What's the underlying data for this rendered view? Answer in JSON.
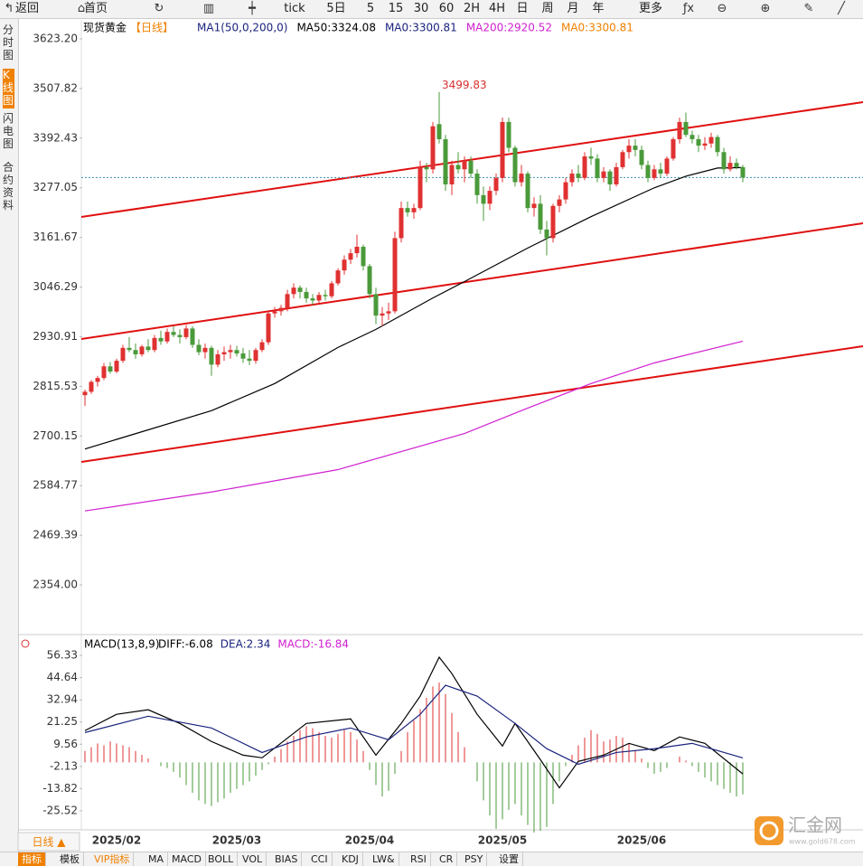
{
  "toolbar": [
    "返回",
    "首页",
    "tick",
    "5日",
    "5",
    "15",
    "30",
    "60",
    "2H",
    "4H",
    "日",
    "周",
    "月",
    "年",
    "更多"
  ],
  "sidebar": [
    "分时图",
    "K线图",
    "闪电图",
    "合约资料"
  ],
  "period_tab": "日线 ▲",
  "bottom_tabs": [
    "指标",
    "模板",
    "VIP指标",
    "MA",
    "MACD",
    "BOLL",
    "VOL",
    "BIAS",
    "CCI",
    "KDJ",
    "LW&",
    "RSI",
    "CR",
    "PSY",
    "设置"
  ],
  "watermark": {
    "name": "汇金网",
    "url": "www.gold678.com"
  },
  "chart_data": [
    {
      "type": "candlestick",
      "title": "现货黄金",
      "period": "【日线】",
      "legend": [
        {
          "text": "MA1(50,0,200,0)",
          "color": "#1a237e"
        },
        {
          "text": "MA50:3324.08",
          "color": "#000000"
        },
        {
          "text": "MA0:3300.81",
          "color": "#1a237e"
        },
        {
          "text": "MA200:2920.52",
          "color": "#d020d0"
        },
        {
          "text": "MA0:3300.81",
          "color": "#f08000"
        }
      ],
      "categories": [
        null,
        null,
        null,
        null,
        null,
        "2025/02",
        null,
        null,
        null,
        null,
        null,
        null,
        null,
        null,
        null,
        null,
        null,
        null,
        null,
        null,
        null,
        null,
        null,
        null,
        "2025/03",
        null,
        null,
        null,
        null,
        null,
        null,
        null,
        null,
        null,
        null,
        null,
        null,
        null,
        null,
        null,
        null,
        null,
        null,
        null,
        null,
        "2025/04",
        null,
        null,
        null,
        null,
        null,
        null,
        null,
        null,
        null,
        null,
        null,
        null,
        null,
        null,
        null,
        null,
        null,
        null,
        null,
        null,
        "2025/05",
        null,
        null,
        null,
        null,
        null,
        null,
        null,
        null,
        null,
        null,
        null,
        null,
        null,
        null,
        null,
        null,
        null,
        null,
        null,
        null,
        null,
        "2025/06",
        null,
        null,
        null,
        null,
        null,
        null,
        null,
        null,
        null,
        null,
        null,
        null,
        null,
        null,
        null,
        null
      ],
      "candles": [
        [
          2795,
          2808,
          2770,
          2803
        ],
        [
          2803,
          2830,
          2798,
          2826
        ],
        [
          2826,
          2840,
          2815,
          2835
        ],
        [
          2835,
          2870,
          2830,
          2862
        ],
        [
          2862,
          2872,
          2845,
          2850
        ],
        [
          2850,
          2880,
          2846,
          2875
        ],
        [
          2875,
          2912,
          2870,
          2905
        ],
        [
          2905,
          2930,
          2895,
          2900
        ],
        [
          2900,
          2915,
          2880,
          2890
        ],
        [
          2890,
          2912,
          2885,
          2908
        ],
        [
          2908,
          2925,
          2895,
          2900
        ],
        [
          2900,
          2935,
          2895,
          2928
        ],
        [
          2928,
          2945,
          2912,
          2920
        ],
        [
          2920,
          2950,
          2915,
          2942
        ],
        [
          2942,
          2955,
          2930,
          2935
        ],
        [
          2935,
          2948,
          2915,
          2930
        ],
        [
          2930,
          2958,
          2925,
          2950
        ],
        [
          2950,
          2955,
          2905,
          2912
        ],
        [
          2912,
          2925,
          2888,
          2895
        ],
        [
          2895,
          2915,
          2880,
          2905
        ],
        [
          2905,
          2910,
          2840,
          2866
        ],
        [
          2866,
          2900,
          2860,
          2890
        ],
        [
          2890,
          2908,
          2875,
          2895
        ],
        [
          2895,
          2912,
          2880,
          2900
        ],
        [
          2900,
          2910,
          2885,
          2892
        ],
        [
          2892,
          2905,
          2870,
          2880
        ],
        [
          2880,
          2900,
          2865,
          2875
        ],
        [
          2875,
          2905,
          2868,
          2900
        ],
        [
          2900,
          2925,
          2895,
          2918
        ],
        [
          2918,
          2990,
          2912,
          2985
        ],
        [
          2985,
          3000,
          2975,
          2990
        ],
        [
          2990,
          3005,
          2980,
          2998
        ],
        [
          2998,
          3040,
          2990,
          3030
        ],
        [
          3030,
          3055,
          3020,
          3045
        ],
        [
          3045,
          3050,
          3020,
          3035
        ],
        [
          3035,
          3045,
          3010,
          3020
        ],
        [
          3020,
          3030,
          3005,
          3015
        ],
        [
          3015,
          3035,
          3008,
          3028
        ],
        [
          3028,
          3040,
          3015,
          3025
        ],
        [
          3025,
          3060,
          3020,
          3055
        ],
        [
          3055,
          3090,
          3050,
          3085
        ],
        [
          3085,
          3120,
          3075,
          3110
        ],
        [
          3110,
          3135,
          3100,
          3125
        ],
        [
          3125,
          3168,
          3115,
          3140
        ],
        [
          3140,
          3145,
          3085,
          3095
        ],
        [
          3095,
          3100,
          3020,
          3030
        ],
        [
          3030,
          3045,
          2960,
          2980
        ],
        [
          2980,
          3000,
          2955,
          2985
        ],
        [
          2985,
          3010,
          2970,
          2990
        ],
        [
          2990,
          3175,
          2985,
          3160
        ],
        [
          3160,
          3245,
          3150,
          3230
        ],
        [
          3230,
          3245,
          3210,
          3220
        ],
        [
          3220,
          3240,
          3205,
          3230
        ],
        [
          3230,
          3340,
          3225,
          3325
        ],
        [
          3325,
          3335,
          3290,
          3320
        ],
        [
          3320,
          3430,
          3310,
          3420
        ],
        [
          3425,
          3499.83,
          3380,
          3390
        ],
        [
          3390,
          3400,
          3270,
          3285
        ],
        [
          3285,
          3340,
          3260,
          3330
        ],
        [
          3330,
          3360,
          3310,
          3320
        ],
        [
          3320,
          3350,
          3290,
          3340
        ],
        [
          3340,
          3350,
          3300,
          3310
        ],
        [
          3310,
          3320,
          3240,
          3260
        ],
        [
          3260,
          3280,
          3200,
          3240
        ],
        [
          3240,
          3280,
          3225,
          3270
        ],
        [
          3270,
          3310,
          3260,
          3300
        ],
        [
          3300,
          3440,
          3290,
          3430
        ],
        [
          3430,
          3440,
          3360,
          3370
        ],
        [
          3370,
          3375,
          3280,
          3290
        ],
        [
          3290,
          3330,
          3280,
          3310
        ],
        [
          3310,
          3315,
          3220,
          3230
        ],
        [
          3230,
          3255,
          3210,
          3240
        ],
        [
          3240,
          3260,
          3170,
          3180
        ],
        [
          3180,
          3200,
          3120,
          3160
        ],
        [
          3160,
          3240,
          3150,
          3235
        ],
        [
          3235,
          3260,
          3220,
          3250
        ],
        [
          3250,
          3300,
          3240,
          3290
        ],
        [
          3290,
          3320,
          3280,
          3310
        ],
        [
          3310,
          3330,
          3290,
          3300
        ],
        [
          3300,
          3360,
          3295,
          3350
        ],
        [
          3350,
          3370,
          3330,
          3345
        ],
        [
          3345,
          3355,
          3290,
          3300
        ],
        [
          3300,
          3325,
          3290,
          3315
        ],
        [
          3315,
          3320,
          3270,
          3285
        ],
        [
          3285,
          3335,
          3280,
          3325
        ],
        [
          3325,
          3365,
          3320,
          3360
        ],
        [
          3360,
          3390,
          3345,
          3375
        ],
        [
          3375,
          3390,
          3350,
          3365
        ],
        [
          3365,
          3375,
          3320,
          3330
        ],
        [
          3330,
          3340,
          3290,
          3300
        ],
        [
          3300,
          3330,
          3295,
          3320
        ],
        [
          3320,
          3335,
          3300,
          3310
        ],
        [
          3310,
          3350,
          3305,
          3345
        ],
        [
          3345,
          3395,
          3340,
          3390
        ],
        [
          3390,
          3440,
          3380,
          3430
        ],
        [
          3430,
          3452,
          3395,
          3400
        ],
        [
          3400,
          3410,
          3380,
          3390
        ],
        [
          3390,
          3400,
          3360,
          3375
        ],
        [
          3375,
          3395,
          3365,
          3380
        ],
        [
          3380,
          3405,
          3370,
          3395
        ],
        [
          3395,
          3400,
          3350,
          3360
        ],
        [
          3360,
          3370,
          3310,
          3320
        ],
        [
          3320,
          3350,
          3315,
          3335
        ],
        [
          3335,
          3345,
          3320,
          3325
        ],
        [
          3325,
          3330,
          3290,
          3300.81
        ]
      ],
      "up_color": "#e03131",
      "down_color": "#4a9a3a",
      "lines": [
        {
          "color": "#000000",
          "x": [
            0,
            20,
            30,
            40,
            46,
            55,
            60,
            70,
            80,
            90,
            95,
            100,
            104
          ],
          "values": [
            2670,
            2759,
            2822,
            2906,
            2948,
            3021,
            3059,
            3137,
            3210,
            3277,
            3304,
            3323,
            3324.08
          ]
        },
        {
          "color": "#d020d0",
          "x": [
            0,
            20,
            40,
            60,
            70,
            80,
            90,
            104
          ],
          "values": [
            2526,
            2570,
            2622,
            2706,
            2765,
            2822,
            2870,
            2920.52
          ]
        }
      ],
      "last_price": 3300.81,
      "ylim": [
        2242.8,
        3667.3
      ],
      "yticks": [
        {
          "value": 3623.2,
          "label": "3623.20"
        },
        3507.82,
        3392.43,
        3277.05,
        3161.67,
        3046.29,
        2930.91,
        2815.53,
        2700.15,
        2584.77,
        2469.39,
        {
          "value": 2354,
          "label": "2354.00"
        }
      ]
    },
    {
      "type": "macd",
      "title": "MACD(13,8,9)",
      "legend": [
        {
          "text": "DIFF:-6.08",
          "color": "#000000"
        },
        {
          "text": "DEA:2.34",
          "color": "#1a237e"
        },
        {
          "text": "MACD:-16.84",
          "color": "#d020d0"
        }
      ],
      "series": [
        {
          "color": "#000000",
          "x": [
            0,
            5,
            10,
            15,
            20,
            25,
            28,
            35,
            42,
            46,
            50,
            53,
            56,
            58,
            62,
            66,
            68,
            72,
            75,
            78,
            82,
            86,
            90,
            94,
            98,
            104
          ],
          "values": [
            16.7,
            25.3,
            27.7,
            20.5,
            11,
            3.8,
            2.4,
            20.5,
            22.9,
            3.8,
            20.5,
            34.9,
            55.4,
            46.8,
            25.3,
            8.6,
            20.5,
            1.4,
            -13.4,
            0.5,
            3.8,
            10,
            6.2,
            13.4,
            10,
            -6.08
          ]
        },
        {
          "color": "#1a237e",
          "x": [
            0,
            10,
            20,
            28,
            35,
            42,
            48,
            53,
            57,
            62,
            68,
            73,
            78,
            84,
            90,
            96,
            100,
            104
          ],
          "values": [
            15.7,
            24.3,
            18.1,
            5.2,
            13.4,
            18.1,
            11.9,
            25.3,
            40.6,
            34.9,
            20.5,
            7.2,
            -1,
            5.2,
            7.2,
            10,
            6.2,
            2.34
          ]
        }
      ],
      "histogram": [
        6,
        8,
        10,
        9,
        11,
        10,
        9,
        8,
        6,
        4,
        2,
        0,
        -2,
        -3,
        -5,
        -8,
        -12,
        -16,
        -20,
        -22,
        -23,
        -21,
        -19,
        -16,
        -14,
        -12,
        -10,
        -7,
        -4,
        -1,
        3,
        7,
        11,
        14,
        17,
        19,
        18,
        16,
        14,
        13,
        15,
        17,
        16,
        12,
        6,
        -4,
        -12,
        -18,
        -15,
        -6,
        6,
        16,
        22,
        28,
        34,
        40,
        42,
        36,
        26,
        16,
        8,
        0,
        -10,
        -20,
        -28,
        -35,
        -30,
        -25,
        -22,
        -28,
        -33,
        -37,
        -36,
        -34,
        -22,
        -10,
        -2,
        4,
        9,
        13,
        17,
        15,
        11,
        12,
        14,
        13,
        10,
        6,
        2,
        -3,
        -6,
        -5,
        -3,
        0,
        3,
        1,
        -2,
        -5,
        -8,
        -10,
        -12,
        -14,
        -16,
        -18,
        -16.84
      ],
      "up_color": "#e03131",
      "down_color": "#4a9a3a",
      "ylim": [
        -35.55,
        66.83
      ],
      "yticks": [
        56.33,
        44.64,
        32.94,
        21.25,
        9.56,
        -2.13,
        -13.82,
        -25.52
      ]
    }
  ]
}
